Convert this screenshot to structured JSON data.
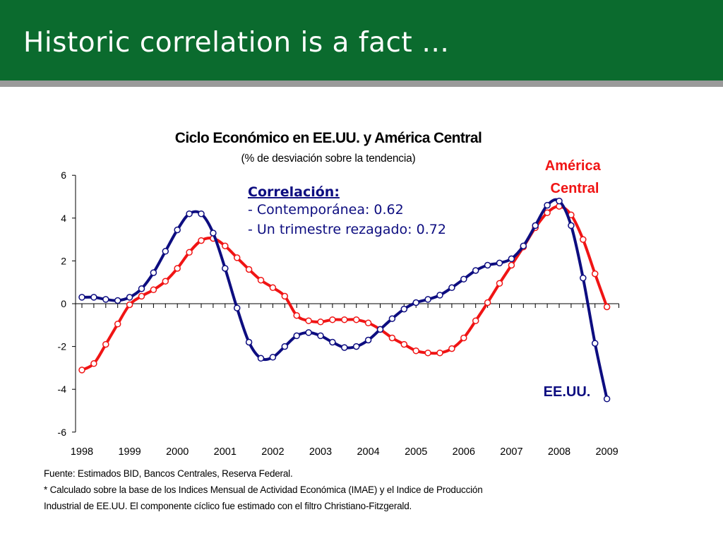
{
  "slide": {
    "title": "Historic correlation is a fact …"
  },
  "colors": {
    "header_bg": "#0b6b2e",
    "header_rule": "#9a9a9a",
    "us_series": "#0d0d80",
    "ca_series": "#f01414",
    "annotation_text": "#0d0d80"
  },
  "annotation": {
    "heading": "Correlación:",
    "line1": "- Contemporánea: 0.62",
    "line2": "- Un trimestre rezagado: 0.72"
  },
  "footnotes": {
    "source": "Fuente: Estimados BID, Bancos Centrales, Reserva Federal.",
    "note1": "* Calculado sobre la base de los Indices Mensual de Actividad Económica (IMAE) y el Indice de Producción",
    "note2": "Industrial de EE.UU. El componente cíclico fue estimado con el filtro Christiano-Fitzgerald."
  },
  "chart_data": {
    "type": "line",
    "title": "Ciclo Económico en EE.UU. y América Central",
    "subtitle": "(% de desviación sobre la tendencia)",
    "xlabel": "",
    "ylabel": "",
    "ylim": [
      -6,
      6
    ],
    "yticks": [
      6,
      4,
      2,
      0,
      -2,
      -4,
      -6
    ],
    "xlim": [
      1998,
      2009.25
    ],
    "year_labels": [
      "1998",
      "1999",
      "2000",
      "2001",
      "2002",
      "2003",
      "2004",
      "2005",
      "2006",
      "2007",
      "2008",
      "2009"
    ],
    "x": [
      1998.0,
      1998.25,
      1998.5,
      1998.75,
      1999.0,
      1999.25,
      1999.5,
      1999.75,
      2000.0,
      2000.25,
      2000.5,
      2000.75,
      2001.0,
      2001.25,
      2001.5,
      2001.75,
      2002.0,
      2002.25,
      2002.5,
      2002.75,
      2003.0,
      2003.25,
      2003.5,
      2003.75,
      2004.0,
      2004.25,
      2004.5,
      2004.75,
      2005.0,
      2005.25,
      2005.5,
      2005.75,
      2006.0,
      2006.25,
      2006.5,
      2006.75,
      2007.0,
      2007.25,
      2007.5,
      2007.75,
      2008.0,
      2008.25,
      2008.5,
      2008.75,
      2009.0
    ],
    "grid": false,
    "legend": "direct labels",
    "series": [
      {
        "name": "EE.UU.",
        "label_lines": [
          "EE.UU."
        ],
        "color": "#0d0d80",
        "values": [
          0.3,
          0.3,
          0.2,
          0.15,
          0.3,
          0.7,
          1.45,
          2.45,
          3.45,
          4.2,
          4.2,
          3.3,
          1.65,
          -0.2,
          -1.8,
          -2.55,
          -2.5,
          -2.0,
          -1.5,
          -1.35,
          -1.5,
          -1.8,
          -2.05,
          -2.0,
          -1.7,
          -1.2,
          -0.7,
          -0.25,
          0.05,
          0.2,
          0.4,
          0.75,
          1.15,
          1.55,
          1.8,
          1.9,
          2.1,
          2.7,
          3.65,
          4.6,
          4.8,
          3.65,
          1.2,
          -1.85,
          -4.45
        ]
      },
      {
        "name": "América Central",
        "label_lines": [
          "América",
          "Central"
        ],
        "color": "#f01414",
        "values": [
          -3.1,
          -2.8,
          -1.9,
          -0.95,
          -0.05,
          0.35,
          0.65,
          1.05,
          1.65,
          2.4,
          2.95,
          3.05,
          2.7,
          2.15,
          1.6,
          1.1,
          0.75,
          0.35,
          -0.55,
          -0.8,
          -0.85,
          -0.75,
          -0.75,
          -0.75,
          -0.9,
          -1.2,
          -1.6,
          -1.9,
          -2.2,
          -2.3,
          -2.3,
          -2.1,
          -1.6,
          -0.8,
          0.05,
          0.95,
          1.8,
          2.65,
          3.55,
          4.25,
          4.55,
          4.15,
          3.0,
          1.4,
          -0.15
        ]
      }
    ]
  }
}
